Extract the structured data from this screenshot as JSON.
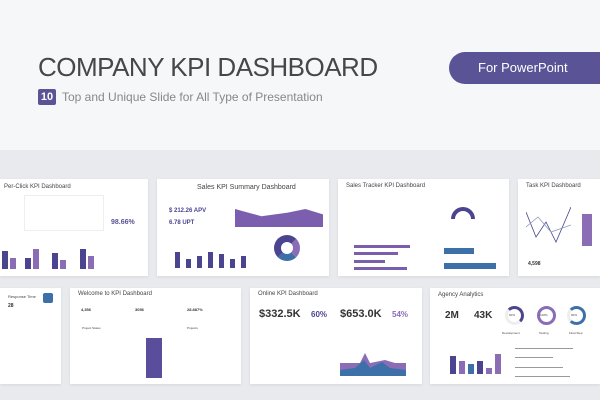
{
  "header": {
    "title": "COMPANY KPI DASHBOARD",
    "slide_count": "10",
    "subtitle": "Top and Unique Slide for All Type of Presentation",
    "badge": "For PowerPoint"
  },
  "colors": {
    "accent": "#5a5496",
    "purple_light": "#8a6db5",
    "blue": "#3d6fa8"
  },
  "slides": [
    {
      "title": "Per-Click KPI Dashboard",
      "kpi": "98.66%"
    },
    {
      "title": "Sales KPI Summary Dashboard",
      "kpi1": "$ 212.26  APV",
      "kpi2": "6.78 UPT"
    },
    {
      "title": "Sales Tracker KPI Dashboard"
    },
    {
      "title": "Task KPI Dashboard",
      "kpi": "4,598"
    },
    {
      "title": "Response Time",
      "kpi": "28"
    },
    {
      "title": "Welcome to KPI Dashboard",
      "kpi1": "4,356",
      "kpi2": "3056",
      "kpi3": "28.887%",
      "table_title": "Project Status",
      "side_title": "Projects"
    },
    {
      "title": "Online KPI Dashboard",
      "kpi1": "$332.5K",
      "pct1": "60%",
      "kpi2": "$653.0K",
      "pct2": "54%"
    },
    {
      "title": "Agency Analytics",
      "kpi1": "2M",
      "kpi2": "43K",
      "g1": "60%",
      "g2": "100%",
      "g3": "90%",
      "g1_label": "Development",
      "g2_label": "Testing",
      "g3_label": "Final Step"
    }
  ]
}
